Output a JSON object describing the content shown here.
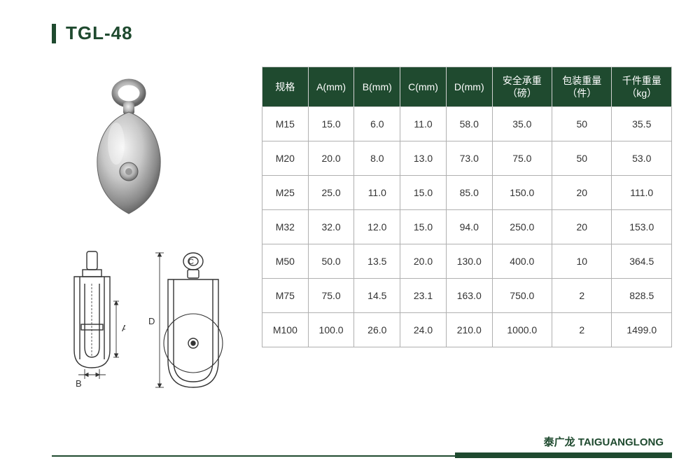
{
  "title": "TGL-48",
  "brand": "泰广龙 TAIGUANGLONG",
  "colors": {
    "accent": "#1f4a2f",
    "header_bg": "#1f4a2f",
    "header_text": "#ffffff",
    "cell_text": "#333333",
    "border": "#b0b0b0",
    "bg": "#ffffff"
  },
  "table": {
    "columns": [
      "规格",
      "A(mm)",
      "B(mm)",
      "C(mm)",
      "D(mm)",
      "安全承重\n（磅）",
      "包装重量\n（件）",
      "千件重量\n（kg）"
    ],
    "col_widths": [
      "60px",
      "60px",
      "60px",
      "60px",
      "60px",
      "78px",
      "78px",
      "78px"
    ],
    "rows": [
      [
        "M15",
        "15.0",
        "6.0",
        "11.0",
        "58.0",
        "35.0",
        "50",
        "35.5"
      ],
      [
        "M20",
        "20.0",
        "8.0",
        "13.0",
        "73.0",
        "75.0",
        "50",
        "53.0"
      ],
      [
        "M25",
        "25.0",
        "11.0",
        "15.0",
        "85.0",
        "150.0",
        "20",
        "111.0"
      ],
      [
        "M32",
        "32.0",
        "12.0",
        "15.0",
        "94.0",
        "250.0",
        "20",
        "153.0"
      ],
      [
        "M50",
        "50.0",
        "13.5",
        "20.0",
        "130.0",
        "400.0",
        "10",
        "364.5"
      ],
      [
        "M75",
        "75.0",
        "14.5",
        "23.1",
        "163.0",
        "750.0",
        "2",
        "828.5"
      ],
      [
        "M100",
        "100.0",
        "26.0",
        "24.0",
        "210.0",
        "1000.0",
        "2",
        "1499.0"
      ]
    ],
    "header_fontsize": 14,
    "cell_fontsize": 14
  },
  "diagram_labels": {
    "a": "A",
    "b": "B",
    "c": "C",
    "d": "D"
  }
}
